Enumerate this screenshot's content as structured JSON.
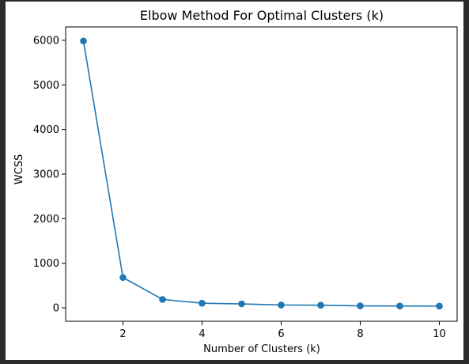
{
  "chart_data": {
    "type": "line",
    "title": "Elbow Method For Optimal Clusters (k)",
    "xlabel": "Number of Clusters (k)",
    "ylabel": "WCSS",
    "x": [
      1,
      2,
      3,
      4,
      5,
      6,
      7,
      8,
      9,
      10
    ],
    "series": [
      {
        "values": [
          5985,
          680,
          190,
          105,
          90,
          65,
          60,
          45,
          42,
          40
        ]
      }
    ],
    "xlim": [
      0.55,
      10.45
    ],
    "ylim": [
      -300,
      6300
    ],
    "xticks": [
      2,
      4,
      6,
      8,
      10
    ],
    "yticks": [
      0,
      1000,
      2000,
      3000,
      4000,
      5000,
      6000
    ],
    "marker": "circle",
    "grid": false,
    "colors": {
      "line": "#1f77b4",
      "marker": "#1f77b4"
    }
  }
}
